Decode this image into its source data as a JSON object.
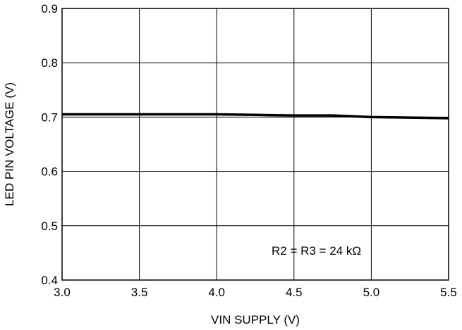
{
  "chart_data": {
    "type": "line",
    "title": "",
    "xlabel": "VIN SUPPLY (V)",
    "ylabel": "LED PIN VOLTAGE (V)",
    "xlim": [
      3.0,
      5.5
    ],
    "ylim": [
      0.4,
      0.9
    ],
    "x_ticks": [
      "3.0",
      "3.5",
      "4.0",
      "4.5",
      "5.0",
      "5.5"
    ],
    "y_ticks": [
      "0.4",
      "0.5",
      "0.6",
      "0.7",
      "0.8",
      "0.9"
    ],
    "grid": true,
    "annotation": "R2 = R3 = 24 kΩ",
    "series": [
      {
        "x": [
          3.0,
          3.5,
          4.0,
          4.25,
          4.5,
          4.75,
          5.0,
          5.25,
          5.5
        ],
        "y": [
          0.705,
          0.705,
          0.705,
          0.704,
          0.703,
          0.703,
          0.7,
          0.699,
          0.698
        ]
      }
    ]
  }
}
